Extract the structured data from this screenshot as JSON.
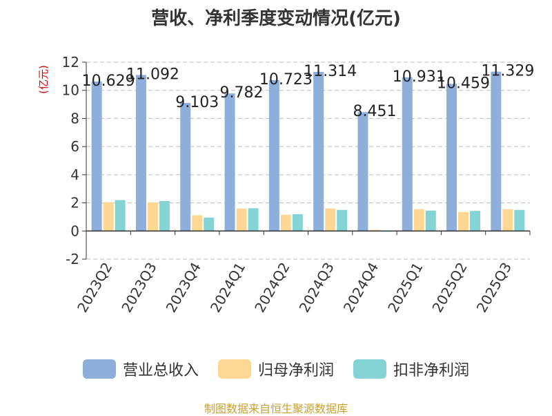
{
  "chart_data": {
    "type": "bar",
    "title": "营收、净利季度变动情况(亿元)",
    "ylabel": "(亿元)",
    "xlabel": "",
    "ylim": [
      -2,
      12
    ],
    "yticks": [
      -2,
      0,
      2,
      4,
      6,
      8,
      10,
      12
    ],
    "grid": true,
    "legend_position": "bottom",
    "categories": [
      "2023Q2",
      "2023Q3",
      "2023Q4",
      "2024Q1",
      "2024Q2",
      "2024Q3",
      "2024Q4",
      "2025Q1",
      "2025Q2",
      "2025Q3"
    ],
    "series": [
      {
        "name": "营业总收入",
        "color": "#8eaedc",
        "values": [
          10.629,
          11.092,
          9.103,
          9.782,
          10.723,
          11.314,
          8.451,
          10.931,
          10.459,
          11.329
        ],
        "labels": [
          "10.629",
          "11.092",
          "9.103",
          "9.782",
          "10.723",
          "11.314",
          "8.451",
          "10.931",
          "10.459",
          "11.329"
        ]
      },
      {
        "name": "归母净利润",
        "color": "#fdd794",
        "values": [
          2.05,
          2.03,
          1.12,
          1.6,
          1.15,
          1.6,
          0.08,
          1.55,
          1.35,
          1.55
        ]
      },
      {
        "name": "扣非净利润",
        "color": "#84d4d6",
        "values": [
          2.2,
          2.13,
          0.95,
          1.62,
          1.2,
          1.5,
          -0.05,
          1.45,
          1.43,
          1.5
        ]
      }
    ]
  },
  "source_note": "制图数据来自恒生聚源数据库"
}
